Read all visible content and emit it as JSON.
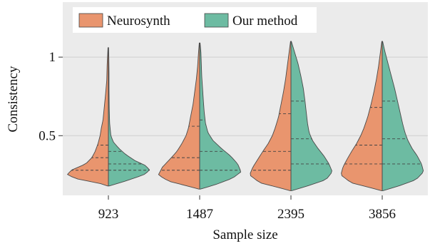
{
  "chart_data": {
    "type": "violin",
    "split": true,
    "title": "",
    "xlabel": "Sample size",
    "ylabel": "Consistency",
    "categories": [
      "923",
      "1487",
      "2395",
      "3856"
    ],
    "y_ticks": [
      0.5,
      1
    ],
    "y_tick_labels": [
      "0.5",
      "1"
    ],
    "ylim": [
      0.12,
      1.35
    ],
    "grid": "horizontal",
    "legend_position": "top-left",
    "series": [
      {
        "name": "Neurosynth",
        "color": "#e9956e",
        "side": "left",
        "quartiles": [
          [
            0.28,
            0.36,
            0.44
          ],
          [
            0.28,
            0.36,
            0.56
          ],
          [
            0.28,
            0.4,
            0.64
          ],
          [
            0.32,
            0.44,
            0.68
          ]
        ],
        "ranges": [
          [
            0.18,
            1.06
          ],
          [
            0.16,
            1.09
          ],
          [
            0.15,
            1.1
          ],
          [
            0.15,
            1.1
          ]
        ],
        "profiles": [
          [
            [
              0.18,
              0.02
            ],
            [
              0.2,
              0.25
            ],
            [
              0.22,
              0.7
            ],
            [
              0.25,
              1.0
            ],
            [
              0.28,
              0.9
            ],
            [
              0.32,
              0.55
            ],
            [
              0.36,
              0.4
            ],
            [
              0.4,
              0.32
            ],
            [
              0.45,
              0.25
            ],
            [
              0.5,
              0.2
            ],
            [
              0.55,
              0.17
            ],
            [
              0.6,
              0.13
            ],
            [
              0.68,
              0.1
            ],
            [
              0.76,
              0.07
            ],
            [
              0.85,
              0.04
            ],
            [
              0.95,
              0.03
            ],
            [
              1.06,
              0.01
            ]
          ],
          [
            [
              0.16,
              0.02
            ],
            [
              0.18,
              0.3
            ],
            [
              0.21,
              0.75
            ],
            [
              0.25,
              1.0
            ],
            [
              0.3,
              0.9
            ],
            [
              0.35,
              0.72
            ],
            [
              0.4,
              0.55
            ],
            [
              0.45,
              0.43
            ],
            [
              0.5,
              0.33
            ],
            [
              0.55,
              0.27
            ],
            [
              0.62,
              0.22
            ],
            [
              0.7,
              0.16
            ],
            [
              0.78,
              0.12
            ],
            [
              0.86,
              0.08
            ],
            [
              0.94,
              0.05
            ],
            [
              1.02,
              0.03
            ],
            [
              1.09,
              0.01
            ]
          ],
          [
            [
              0.15,
              0.02
            ],
            [
              0.17,
              0.3
            ],
            [
              0.2,
              0.75
            ],
            [
              0.25,
              1.0
            ],
            [
              0.3,
              0.92
            ],
            [
              0.35,
              0.8
            ],
            [
              0.4,
              0.68
            ],
            [
              0.45,
              0.55
            ],
            [
              0.5,
              0.45
            ],
            [
              0.55,
              0.38
            ],
            [
              0.62,
              0.3
            ],
            [
              0.7,
              0.24
            ],
            [
              0.78,
              0.18
            ],
            [
              0.86,
              0.13
            ],
            [
              0.94,
              0.09
            ],
            [
              1.02,
              0.05
            ],
            [
              1.1,
              0.01
            ]
          ],
          [
            [
              0.15,
              0.02
            ],
            [
              0.17,
              0.3
            ],
            [
              0.2,
              0.75
            ],
            [
              0.25,
              1.0
            ],
            [
              0.3,
              0.95
            ],
            [
              0.35,
              0.85
            ],
            [
              0.4,
              0.74
            ],
            [
              0.45,
              0.62
            ],
            [
              0.5,
              0.52
            ],
            [
              0.55,
              0.44
            ],
            [
              0.62,
              0.35
            ],
            [
              0.7,
              0.27
            ],
            [
              0.78,
              0.2
            ],
            [
              0.86,
              0.14
            ],
            [
              0.94,
              0.09
            ],
            [
              1.02,
              0.05
            ],
            [
              1.1,
              0.01
            ]
          ]
        ]
      },
      {
        "name": "Our method",
        "color": "#6dbba2",
        "side": "right",
        "quartiles": [
          [
            0.28,
            0.32,
            0.4
          ],
          [
            0.28,
            0.4,
            0.6
          ],
          [
            0.32,
            0.48,
            0.72
          ],
          [
            0.32,
            0.48,
            0.72
          ]
        ],
        "ranges": [
          [
            0.18,
            1.06
          ],
          [
            0.16,
            1.09
          ],
          [
            0.15,
            1.1
          ],
          [
            0.15,
            1.1
          ]
        ],
        "profiles": [
          [
            [
              0.18,
              0.02
            ],
            [
              0.21,
              0.4
            ],
            [
              0.25,
              0.85
            ],
            [
              0.28,
              1.0
            ],
            [
              0.31,
              0.9
            ],
            [
              0.34,
              0.65
            ],
            [
              0.38,
              0.42
            ],
            [
              0.42,
              0.25
            ],
            [
              0.46,
              0.12
            ],
            [
              0.5,
              0.06
            ],
            [
              0.58,
              0.03
            ],
            [
              0.68,
              0.02
            ],
            [
              0.8,
              0.015
            ],
            [
              0.9,
              0.015
            ],
            [
              1.0,
              0.01
            ],
            [
              1.06,
              0.005
            ]
          ],
          [
            [
              0.16,
              0.02
            ],
            [
              0.19,
              0.4
            ],
            [
              0.23,
              0.8
            ],
            [
              0.27,
              1.0
            ],
            [
              0.32,
              0.92
            ],
            [
              0.37,
              0.75
            ],
            [
              0.42,
              0.52
            ],
            [
              0.47,
              0.32
            ],
            [
              0.52,
              0.2
            ],
            [
              0.58,
              0.14
            ],
            [
              0.65,
              0.11
            ],
            [
              0.72,
              0.09
            ],
            [
              0.8,
              0.07
            ],
            [
              0.88,
              0.05
            ],
            [
              0.96,
              0.04
            ],
            [
              1.03,
              0.03
            ],
            [
              1.09,
              0.01
            ]
          ],
          [
            [
              0.15,
              0.02
            ],
            [
              0.18,
              0.4
            ],
            [
              0.22,
              0.85
            ],
            [
              0.27,
              1.0
            ],
            [
              0.32,
              0.92
            ],
            [
              0.37,
              0.8
            ],
            [
              0.42,
              0.65
            ],
            [
              0.47,
              0.52
            ],
            [
              0.52,
              0.44
            ],
            [
              0.58,
              0.4
            ],
            [
              0.65,
              0.37
            ],
            [
              0.72,
              0.34
            ],
            [
              0.8,
              0.3
            ],
            [
              0.88,
              0.24
            ],
            [
              0.96,
              0.17
            ],
            [
              1.03,
              0.09
            ],
            [
              1.1,
              0.01
            ]
          ],
          [
            [
              0.15,
              0.02
            ],
            [
              0.18,
              0.4
            ],
            [
              0.22,
              0.82
            ],
            [
              0.27,
              1.0
            ],
            [
              0.32,
              0.95
            ],
            [
              0.37,
              0.85
            ],
            [
              0.42,
              0.72
            ],
            [
              0.47,
              0.62
            ],
            [
              0.52,
              0.55
            ],
            [
              0.58,
              0.49
            ],
            [
              0.65,
              0.43
            ],
            [
              0.72,
              0.37
            ],
            [
              0.8,
              0.3
            ],
            [
              0.88,
              0.22
            ],
            [
              0.96,
              0.14
            ],
            [
              1.03,
              0.07
            ],
            [
              1.1,
              0.01
            ]
          ]
        ]
      }
    ]
  }
}
